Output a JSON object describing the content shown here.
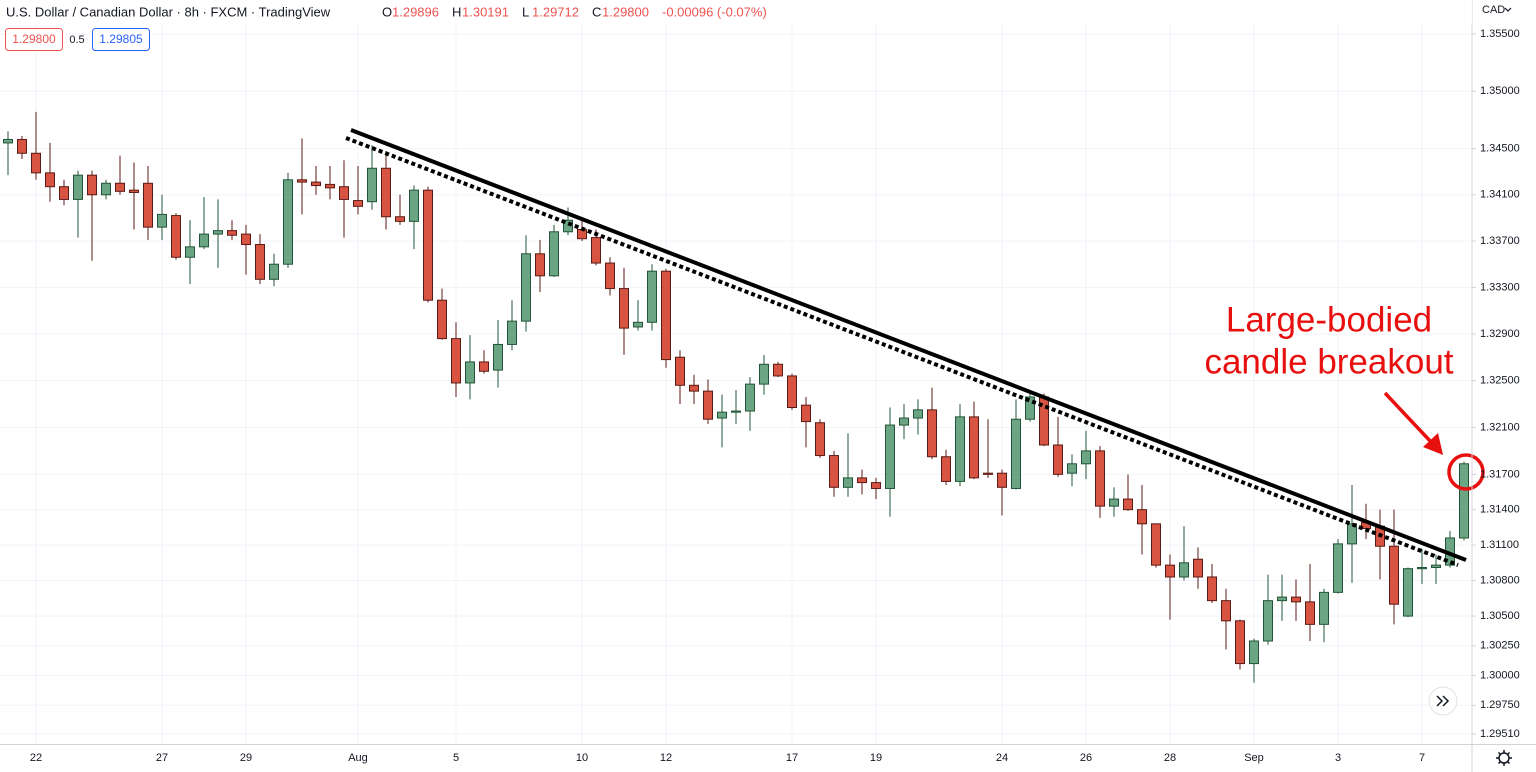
{
  "chart_data": {
    "type": "candlestick",
    "title": "U.S. Dollar / Canadian Dollar · 8h · FXCM · TradingView",
    "quote": [
      {
        "label": "O",
        "value": "1.29896"
      },
      {
        "label": "H",
        "value": "1.30191"
      },
      {
        "label": "L",
        "value": "1.29712"
      },
      {
        "label": "C",
        "value": "1.29800"
      }
    ],
    "change": "-0.00096 (-0.07%)",
    "sell_price": "1.29800",
    "spread": "0.5",
    "buy_price": "1.29805",
    "currency": "CAD",
    "annotation": [
      "Large-bodied",
      "candle breakout"
    ],
    "log_scale": true,
    "grid": true,
    "up_color": "#6ba583",
    "down_color": "#d75442",
    "ylim": [
      1.29426,
      1.35798
    ],
    "yticks": [
      {
        "value": 1.355,
        "label": "1.35500"
      },
      {
        "value": 1.35,
        "label": "1.35000"
      },
      {
        "value": 1.345,
        "label": "1.34500"
      },
      {
        "value": 1.341,
        "label": "1.34100"
      },
      {
        "value": 1.337,
        "label": "1.33700"
      },
      {
        "value": 1.333,
        "label": "1.33300"
      },
      {
        "value": 1.329,
        "label": "1.32900"
      },
      {
        "value": 1.325,
        "label": "1.32500"
      },
      {
        "value": 1.321,
        "label": "1.32100"
      },
      {
        "value": 1.317,
        "label": "1.31700"
      },
      {
        "value": 1.314,
        "label": "1.31400"
      },
      {
        "value": 1.311,
        "label": "1.31100"
      },
      {
        "value": 1.308,
        "label": "1.30800"
      },
      {
        "value": 1.305,
        "label": "1.30500"
      },
      {
        "value": 1.3025,
        "label": "1.30250"
      },
      {
        "value": 1.3,
        "label": "1.30000"
      },
      {
        "value": 1.2975,
        "label": "1.29750"
      },
      {
        "value": 1.2951,
        "label": "1.29510"
      }
    ],
    "categories": [
      null,
      null,
      "22",
      null,
      null,
      null,
      null,
      null,
      null,
      null,
      null,
      "27",
      null,
      null,
      null,
      null,
      null,
      "29",
      null,
      null,
      null,
      null,
      null,
      null,
      null,
      "Aug",
      null,
      null,
      null,
      null,
      null,
      null,
      "5",
      null,
      null,
      null,
      null,
      null,
      null,
      null,
      null,
      "10",
      null,
      null,
      null,
      null,
      null,
      "12",
      null,
      null,
      null,
      null,
      null,
      null,
      null,
      null,
      "17",
      null,
      null,
      null,
      null,
      null,
      "19",
      null,
      null,
      null,
      null,
      null,
      null,
      null,
      null,
      "24",
      null,
      null,
      null,
      null,
      null,
      "26",
      null,
      null,
      null,
      null,
      null,
      "28",
      null,
      null,
      null,
      null,
      null,
      "Sep",
      null,
      null,
      null,
      null,
      null,
      "3",
      null,
      null,
      null,
      null,
      null,
      "7",
      null,
      null,
      null
    ],
    "open": [
      1.3455,
      1.3458,
      1.3446,
      1.3429,
      1.3417,
      1.3406,
      1.3427,
      1.341,
      1.342,
      1.3414,
      1.342,
      1.3382,
      1.3392,
      1.3356,
      1.3365,
      1.3376,
      1.3379,
      1.3376,
      1.3367,
      1.3337,
      1.335,
      1.3423,
      1.3421,
      1.3419,
      1.3417,
      1.3405,
      1.3404,
      1.3433,
      1.3391,
      1.3387,
      1.3414,
      1.3319,
      1.3286,
      1.3248,
      1.3266,
      1.3259,
      1.3281,
      1.3301,
      1.3359,
      1.334,
      1.3378,
      1.338,
      1.3373,
      1.3351,
      1.3329,
      1.3296,
      1.33,
      1.3344,
      1.327,
      1.3246,
      1.3241,
      1.3218,
      1.3223,
      1.3224,
      1.3247,
      1.3264,
      1.3254,
      1.3229,
      1.3214,
      1.3186,
      1.3159,
      1.3167,
      1.3163,
      1.3158,
      1.3212,
      1.3218,
      1.3225,
      1.3185,
      1.3164,
      1.3219,
      1.3171,
      1.3171,
      1.3158,
      1.3217,
      1.3236,
      1.3195,
      1.3171,
      1.3179,
      1.319,
      1.3143,
      1.3149,
      1.314,
      1.3128,
      1.3093,
      1.3083,
      1.3098,
      1.3083,
      1.3063,
      1.3046,
      1.301,
      1.3029,
      1.3063,
      1.3066,
      1.3062,
      1.3043,
      1.307,
      1.3111,
      1.3129,
      1.3126,
      1.3109,
      1.305,
      1.309,
      1.3091,
      1.3093,
      1.3116
    ],
    "high": [
      1.3465,
      1.3461,
      1.3482,
      1.3455,
      1.3423,
      1.3431,
      1.3431,
      1.3423,
      1.3444,
      1.3438,
      1.3435,
      1.341,
      1.3394,
      1.3388,
      1.3408,
      1.3406,
      1.3388,
      1.3384,
      1.3376,
      1.3359,
      1.3429,
      1.3459,
      1.3435,
      1.3435,
      1.344,
      1.3435,
      1.3453,
      1.3448,
      1.341,
      1.3418,
      1.3417,
      1.3329,
      1.33,
      1.3289,
      1.3276,
      1.3302,
      1.3319,
      1.3375,
      1.3371,
      1.3384,
      1.3399,
      1.339,
      1.338,
      1.3356,
      1.3347,
      1.3319,
      1.335,
      1.3346,
      1.3276,
      1.3255,
      1.3251,
      1.3238,
      1.3242,
      1.3253,
      1.3272,
      1.3266,
      1.3256,
      1.3236,
      1.3217,
      1.319,
      1.3205,
      1.3174,
      1.3167,
      1.3227,
      1.323,
      1.3234,
      1.3244,
      1.3191,
      1.323,
      1.3232,
      1.3217,
      1.3174,
      1.3234,
      1.3241,
      1.3239,
      1.3219,
      1.3187,
      1.3207,
      1.3194,
      1.3159,
      1.317,
      1.3161,
      1.3122,
      1.3102,
      1.3126,
      1.3108,
      1.3094,
      1.3073,
      1.3047,
      1.3031,
      1.3085,
      1.3085,
      1.3081,
      1.3094,
      1.3073,
      1.3115,
      1.3161,
      1.3145,
      1.314,
      1.314,
      1.3091,
      1.3107,
      1.3102,
      1.3122,
      1.3181
    ],
    "low": [
      1.3427,
      1.3441,
      1.3423,
      1.3404,
      1.3401,
      1.3373,
      1.3353,
      1.3406,
      1.341,
      1.338,
      1.3371,
      1.3371,
      1.3354,
      1.3333,
      1.3363,
      1.3347,
      1.3371,
      1.3341,
      1.3333,
      1.3331,
      1.3347,
      1.3393,
      1.341,
      1.3406,
      1.3373,
      1.3393,
      1.3397,
      1.338,
      1.3384,
      1.3363,
      1.3317,
      1.3285,
      1.3236,
      1.3234,
      1.3256,
      1.3244,
      1.3276,
      1.3292,
      1.3326,
      1.3339,
      1.3375,
      1.337,
      1.3349,
      1.3323,
      1.3272,
      1.3293,
      1.3293,
      1.3261,
      1.323,
      1.323,
      1.3213,
      1.3193,
      1.3213,
      1.3207,
      1.3238,
      1.3253,
      1.3225,
      1.3193,
      1.3184,
      1.3151,
      1.3151,
      1.3153,
      1.3149,
      1.3134,
      1.32,
      1.3204,
      1.3183,
      1.3161,
      1.316,
      1.3166,
      1.3167,
      1.3135,
      1.3157,
      1.3215,
      1.3194,
      1.3168,
      1.316,
      1.3166,
      1.3133,
      1.3134,
      1.3139,
      1.3102,
      1.3091,
      1.3047,
      1.308,
      1.3073,
      1.3061,
      1.3022,
      1.3005,
      1.2994,
      1.3026,
      1.3046,
      1.3046,
      1.3029,
      1.3028,
      1.3069,
      1.3078,
      1.3115,
      1.3081,
      1.3043,
      1.3049,
      1.3077,
      1.3077,
      1.3091,
      1.3114
    ],
    "close": [
      1.3458,
      1.3446,
      1.3429,
      1.3417,
      1.3406,
      1.3427,
      1.341,
      1.342,
      1.3413,
      1.3412,
      1.3382,
      1.3393,
      1.3356,
      1.3365,
      1.3376,
      1.3379,
      1.3375,
      1.3367,
      1.3337,
      1.335,
      1.3423,
      1.3421,
      1.3418,
      1.3416,
      1.3406,
      1.34,
      1.3433,
      1.3391,
      1.3387,
      1.3414,
      1.3319,
      1.3286,
      1.3248,
      1.3266,
      1.3258,
      1.3281,
      1.3301,
      1.3359,
      1.334,
      1.3378,
      1.3388,
      1.3372,
      1.3351,
      1.3329,
      1.3295,
      1.33,
      1.3344,
      1.3268,
      1.3246,
      1.3241,
      1.3217,
      1.3223,
      1.3224,
      1.3247,
      1.3264,
      1.3254,
      1.3227,
      1.3215,
      1.3186,
      1.3159,
      1.3167,
      1.3163,
      1.3158,
      1.3212,
      1.3218,
      1.3225,
      1.3185,
      1.3164,
      1.3219,
      1.3167,
      1.317,
      1.3159,
      1.3217,
      1.3236,
      1.3195,
      1.317,
      1.3179,
      1.319,
      1.3143,
      1.3149,
      1.314,
      1.3128,
      1.3093,
      1.3083,
      1.3095,
      1.3083,
      1.3063,
      1.3046,
      1.301,
      1.3029,
      1.3063,
      1.3066,
      1.3062,
      1.3043,
      1.307,
      1.3111,
      1.3128,
      1.3124,
      1.3109,
      1.306,
      1.309,
      1.3091,
      1.3093,
      1.3116,
      1.3179
    ]
  }
}
